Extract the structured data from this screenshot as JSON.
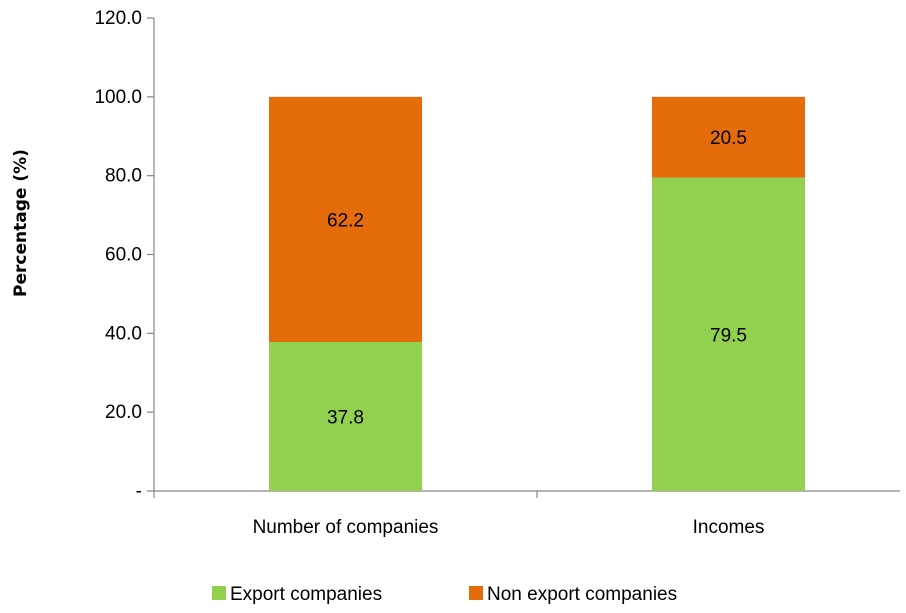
{
  "chart_data": {
    "type": "bar",
    "stacked": true,
    "categories": [
      "Number of companies",
      "Incomes"
    ],
    "series": [
      {
        "name": "Export companies",
        "values": [
          37.8,
          79.5
        ],
        "color": "#92d050"
      },
      {
        "name": "Non export companies",
        "values": [
          62.2,
          20.5
        ],
        "color": "#e46c0a"
      }
    ],
    "title": "",
    "xlabel": "",
    "ylabel": "Percentage (%)",
    "ylim": [
      0,
      120
    ],
    "yticks": [
      "-",
      "20.0",
      "40.0",
      "60.0",
      "80.0",
      "100.0",
      "120.0"
    ],
    "grid": false,
    "legend_position": "bottom"
  }
}
